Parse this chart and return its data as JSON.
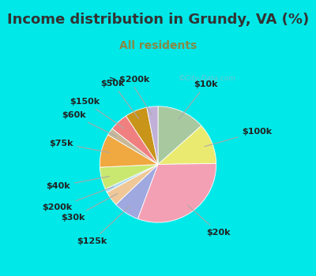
{
  "title": "Income distribution in Grundy, VA (%)",
  "subtitle": "All residents",
  "watermark": "©City-Data.com",
  "slices": [
    {
      "label": "$10k",
      "value": 13,
      "color": "#a8c8a0"
    },
    {
      "label": "$100k",
      "value": 11,
      "color": "#eaea70"
    },
    {
      "label": "$20k",
      "value": 30,
      "color": "#f4a0b4"
    },
    {
      "label": "$125k",
      "value": 7,
      "color": "#a0a8e0"
    },
    {
      "label": "$30k",
      "value": 4,
      "color": "#f0c898"
    },
    {
      "label": "$200k",
      "value": 1,
      "color": "#b0d8ee"
    },
    {
      "label": "$40k",
      "value": 6,
      "color": "#c8e870"
    },
    {
      "label": "$75k",
      "value": 9,
      "color": "#f0a840"
    },
    {
      "label": "$60k",
      "value": 2,
      "color": "#c8b898"
    },
    {
      "label": "$150k",
      "value": 5,
      "color": "#f08080"
    },
    {
      "label": "$50k",
      "value": 6,
      "color": "#c8941a"
    },
    {
      "label": "> $200k",
      "value": 3,
      "color": "#c0b0d8"
    }
  ],
  "outer_bg": "#00e8e8",
  "chart_bg_left": "#d0f0d8",
  "chart_bg_right": "#e8f8f8",
  "title_color": "#333333",
  "subtitle_color": "#888844",
  "title_fontsize": 13,
  "subtitle_fontsize": 10,
  "label_fontsize": 8,
  "watermark_color": "#99bbcc",
  "label_distances": {
    "$10k": 1.28,
    "$100k": 1.32,
    "$20k": 1.22,
    "$125k": 1.35,
    "$30k": 1.32,
    "$200k": 1.4,
    "$40k": 1.32,
    "$75k": 1.28,
    "$60k": 1.28,
    "$150k": 1.25,
    "$50k": 1.28,
    "> $200k": 1.25
  }
}
